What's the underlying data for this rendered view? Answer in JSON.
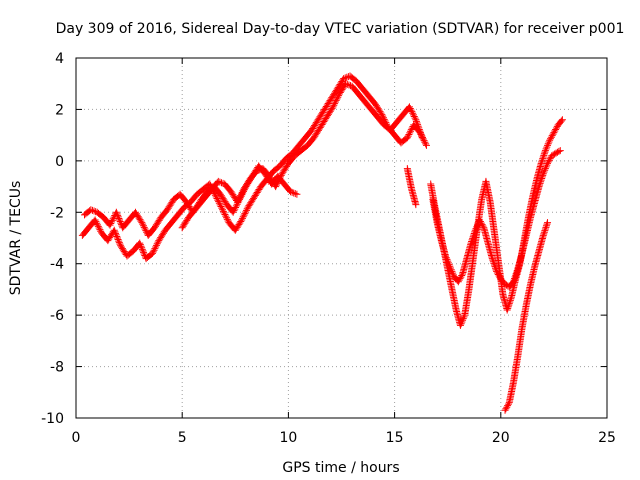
{
  "chart_data": {
    "type": "scatter",
    "title": "Day 309 of 2016, Sidereal Day-to-day VTEC variation (SDTVAR) for receiver p001",
    "xlabel": "GPS time / hours",
    "ylabel": "SDTVAR / TECUs",
    "xlim": [
      0,
      25
    ],
    "ylim": [
      -10,
      4
    ],
    "xticks": [
      0,
      5,
      10,
      15,
      20,
      25
    ],
    "yticks": [
      -10,
      -8,
      -6,
      -4,
      -2,
      0,
      2,
      4
    ],
    "grid": true,
    "legend": "none",
    "marker": "+",
    "color": "#ff0000",
    "series": [
      {
        "x": [
          0.3,
          0.6,
          0.9,
          1.2,
          1.5,
          1.8,
          2.1,
          2.4,
          2.7,
          3.0,
          3.3,
          3.6,
          3.9,
          4.2,
          4.5,
          4.8,
          5.1,
          5.4,
          5.7,
          6.0,
          6.3,
          6.6,
          6.9,
          7.2,
          7.5,
          7.8,
          8.1,
          8.4,
          8.7,
          9.0,
          9.3,
          9.6,
          9.9,
          10.2,
          10.5,
          10.8,
          11.1,
          11.4,
          11.7,
          12.0,
          12.3,
          12.6,
          12.9,
          13.2,
          13.5,
          13.8,
          14.1,
          14.4,
          14.7,
          15.0,
          15.3,
          15.6,
          15.9,
          16.2,
          16.5
        ],
        "y": [
          -2.9,
          -2.6,
          -2.3,
          -2.8,
          -3.1,
          -2.7,
          -3.3,
          -3.7,
          -3.5,
          -3.2,
          -3.8,
          -3.6,
          -3.1,
          -2.7,
          -2.4,
          -2.1,
          -1.8,
          -1.6,
          -1.3,
          -1.1,
          -0.9,
          -1.4,
          -1.9,
          -2.4,
          -2.7,
          -2.3,
          -1.8,
          -1.4,
          -1.0,
          -0.7,
          -0.4,
          -0.2,
          0.1,
          0.3,
          0.6,
          0.9,
          1.2,
          1.6,
          2.0,
          2.4,
          2.8,
          3.2,
          3.3,
          3.1,
          2.8,
          2.5,
          2.2,
          1.8,
          1.3,
          1.0,
          0.7,
          0.9,
          1.4,
          1.1,
          0.6
        ]
      },
      {
        "x": [
          0.4,
          0.7,
          1.0,
          1.3,
          1.6,
          1.9,
          2.2,
          2.5,
          2.8,
          3.1,
          3.4,
          3.7,
          4.0,
          4.3,
          4.6,
          4.9,
          5.2,
          5.5,
          5.8,
          6.1,
          6.4,
          6.7,
          7.0,
          7.3,
          7.6,
          7.9,
          8.2,
          8.5,
          8.8,
          9.1,
          9.4,
          9.7,
          10.0,
          10.3,
          10.6,
          10.9,
          11.2,
          11.5,
          11.8,
          12.1,
          12.4,
          12.7,
          13.0,
          13.3,
          13.6,
          13.9,
          14.2,
          14.5,
          14.8,
          15.1,
          15.4,
          15.7,
          16.0,
          16.3
        ],
        "y": [
          -2.1,
          -1.9,
          -2.0,
          -2.2,
          -2.5,
          -2.0,
          -2.6,
          -2.3,
          -2.0,
          -2.4,
          -2.9,
          -2.6,
          -2.2,
          -1.9,
          -1.5,
          -1.3,
          -1.6,
          -2.0,
          -1.7,
          -1.4,
          -1.1,
          -0.8,
          -0.9,
          -1.2,
          -1.6,
          -1.1,
          -0.7,
          -0.4,
          -0.3,
          -0.6,
          -1.0,
          -0.5,
          -0.1,
          0.2,
          0.4,
          0.6,
          0.9,
          1.3,
          1.7,
          2.1,
          2.6,
          3.0,
          2.9,
          2.6,
          2.3,
          2.0,
          1.7,
          1.4,
          1.2,
          1.5,
          1.8,
          2.1,
          1.6,
          0.9
        ]
      },
      {
        "x": [
          5.0,
          5.3,
          5.6,
          5.9,
          6.2,
          6.5,
          6.8,
          7.1,
          7.4,
          7.7,
          8.0,
          8.3,
          8.6,
          8.9,
          9.2,
          9.5,
          9.8,
          10.1,
          10.4
        ],
        "y": [
          -2.6,
          -2.2,
          -1.9,
          -1.5,
          -1.2,
          -1.0,
          -1.3,
          -1.7,
          -2.0,
          -1.5,
          -1.0,
          -0.6,
          -0.2,
          -0.5,
          -0.9,
          -0.6,
          -0.9,
          -1.2,
          -1.3
        ]
      },
      {
        "x": [
          15.6,
          15.8,
          16.0
        ],
        "y": [
          -0.3,
          -1.1,
          -1.7
        ]
      },
      {
        "x": [
          16.7,
          16.9,
          17.1,
          17.3,
          17.5,
          17.7,
          17.9,
          18.1,
          18.3,
          18.5,
          18.7,
          18.9,
          19.1,
          19.3,
          19.5,
          19.7,
          19.9,
          20.1,
          20.3,
          20.5,
          20.7,
          20.9,
          21.1,
          21.3,
          21.5,
          21.7,
          21.9,
          22.1,
          22.3,
          22.5,
          22.7,
          22.9
        ],
        "y": [
          -0.9,
          -1.8,
          -2.6,
          -3.4,
          -4.2,
          -5.0,
          -5.8,
          -6.4,
          -6.0,
          -5.0,
          -3.8,
          -2.6,
          -1.5,
          -0.8,
          -1.6,
          -2.8,
          -4.0,
          -5.2,
          -5.8,
          -5.3,
          -4.6,
          -4.0,
          -3.1,
          -2.2,
          -1.4,
          -0.7,
          -0.1,
          0.4,
          0.8,
          1.1,
          1.4,
          1.6
        ]
      },
      {
        "x": [
          16.8,
          17.0,
          17.2,
          17.4,
          17.6,
          17.8,
          18.0,
          18.2,
          18.4,
          18.6,
          18.8,
          19.0,
          19.2,
          19.4,
          19.6,
          19.8,
          20.0,
          20.2,
          20.4,
          20.6,
          20.8,
          21.0,
          21.2,
          21.4,
          21.6,
          21.8,
          22.0,
          22.2,
          22.4,
          22.6,
          22.8
        ],
        "y": [
          -1.5,
          -2.4,
          -3.1,
          -3.7,
          -4.1,
          -4.5,
          -4.7,
          -4.4,
          -3.8,
          -3.2,
          -2.7,
          -2.3,
          -2.6,
          -3.2,
          -3.8,
          -4.3,
          -4.6,
          -4.8,
          -4.9,
          -4.7,
          -4.2,
          -3.6,
          -2.9,
          -2.2,
          -1.6,
          -1.0,
          -0.5,
          -0.1,
          0.2,
          0.3,
          0.4
        ]
      },
      {
        "x": [
          20.2,
          20.4,
          20.6,
          20.8,
          21.0,
          21.2,
          21.4,
          21.6,
          21.8,
          22.0,
          22.2
        ],
        "y": [
          -9.7,
          -9.4,
          -8.6,
          -7.6,
          -6.5,
          -5.6,
          -4.8,
          -4.1,
          -3.5,
          -2.9,
          -2.4
        ]
      }
    ]
  }
}
